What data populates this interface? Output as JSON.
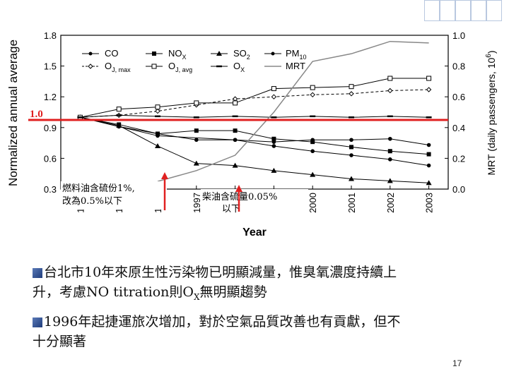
{
  "chart_data": {
    "type": "line",
    "xlabel": "Year",
    "ylabel": "Normalized annual average",
    "y2label": "MRT (daily passengers, 10",
    "y2label_exp": "6",
    "ylim": [
      0.3,
      1.8
    ],
    "y2lim": [
      0.0,
      1.0
    ],
    "xlim": [
      1993.5,
      2003.5
    ],
    "grid": false,
    "legend_position": "top-left",
    "yticks": [
      "0.3",
      "0.6",
      "0.9",
      "1.2",
      "1.5",
      "1.8"
    ],
    "y2ticks": [
      "0.0",
      "0.2",
      "0.4",
      "0.6",
      "0.8",
      "1.0"
    ],
    "xticks": [
      "1994",
      "1995",
      "1996",
      "1997",
      "1998",
      "1999",
      "2000",
      "2001",
      "2002",
      "2003"
    ],
    "legend": [
      "CO",
      "NO",
      "SO",
      "PM",
      "O",
      "O",
      "O",
      "MRT"
    ],
    "series": [
      {
        "name": "CO",
        "axis": "left",
        "marker": "dot",
        "dash": "",
        "x": [
          1994,
          1995,
          1996,
          1998,
          1999,
          2000,
          2001,
          2002,
          2003
        ],
        "y": [
          1.0,
          0.91,
          0.82,
          0.78,
          0.72,
          0.67,
          0.63,
          0.59,
          0.53
        ]
      },
      {
        "name": "NOX",
        "axis": "left",
        "marker": "square",
        "dash": "",
        "x": [
          1994,
          1995,
          1996,
          1997,
          1998,
          1999,
          2000,
          2001,
          2002,
          2003
        ],
        "y": [
          1.0,
          0.93,
          0.84,
          0.87,
          0.87,
          0.79,
          0.76,
          0.71,
          0.67,
          0.64
        ]
      },
      {
        "name": "SO2",
        "axis": "left",
        "marker": "triangle",
        "dash": "",
        "x": [
          1994,
          1995,
          1996,
          1997,
          1998,
          1999,
          2000,
          2001,
          2002,
          2003
        ],
        "y": [
          1.0,
          0.92,
          0.72,
          0.55,
          0.53,
          0.48,
          0.44,
          0.4,
          0.38,
          0.36
        ]
      },
      {
        "name": "PM10",
        "axis": "left",
        "marker": "dot",
        "dash": "",
        "x": [
          1994,
          1995,
          1996,
          1997,
          1998,
          1999,
          2000,
          2001,
          2002,
          2003
        ],
        "y": [
          1.0,
          0.91,
          0.84,
          0.78,
          0.78,
          0.76,
          0.78,
          0.78,
          0.79,
          0.73
        ]
      },
      {
        "name": "OJ,max",
        "axis": "left",
        "marker": "diamond",
        "dash": "4,3",
        "x": [
          1994,
          1995,
          1996,
          1997,
          1998,
          1999,
          2000,
          2001,
          2002,
          2003
        ],
        "y": [
          1.0,
          1.02,
          1.06,
          1.12,
          1.18,
          1.2,
          1.22,
          1.23,
          1.26,
          1.27
        ]
      },
      {
        "name": "OJ,avg",
        "axis": "left",
        "marker": "osquare",
        "dash": "",
        "x": [
          1994,
          1995,
          1996,
          1997,
          1998,
          1999,
          2000,
          2001,
          2002,
          2003
        ],
        "y": [
          1.0,
          1.08,
          1.1,
          1.14,
          1.14,
          1.28,
          1.29,
          1.3,
          1.38,
          1.38
        ]
      },
      {
        "name": "OX",
        "axis": "left",
        "marker": "dash",
        "dash": "",
        "x": [
          1994,
          1995,
          1996,
          1997,
          1998,
          1999,
          2000,
          2001,
          2002,
          2003
        ],
        "y": [
          1.0,
          1.02,
          1.01,
          1.0,
          1.01,
          1.0,
          1.01,
          1.0,
          1.01,
          1.0
        ]
      },
      {
        "name": "MRT",
        "axis": "right",
        "marker": "none",
        "dash": "",
        "x": [
          1996,
          1997,
          1998,
          1999,
          2000,
          2001,
          2002,
          2003
        ],
        "y": [
          0.05,
          0.12,
          0.22,
          0.5,
          0.83,
          0.88,
          0.96,
          0.95
        ]
      }
    ],
    "reference_line": {
      "label": "1.0",
      "value": 1.0,
      "color": "#e02020"
    },
    "annotations": [
      {
        "text_line1": "燃料油含硫份1%,",
        "text_line2": "改為0.5%以下",
        "year": 1996
      },
      {
        "text_line1": "柴油含硫量0.05%",
        "text_line2": "以下",
        "year": 1998
      }
    ]
  },
  "bullets": [
    {
      "line1": "台北市10年來原生性污染物已明顯減量，惟臭氧濃度持續上",
      "line2": "升，考慮NO titration則O",
      "sub": "X",
      "line2_end": "無明顯趨勢"
    },
    {
      "line1": "1996年起捷運旅次增加，對於空氣品質改善也有貢獻，但不",
      "line2": "十分顯著"
    }
  ],
  "page_number": "17"
}
